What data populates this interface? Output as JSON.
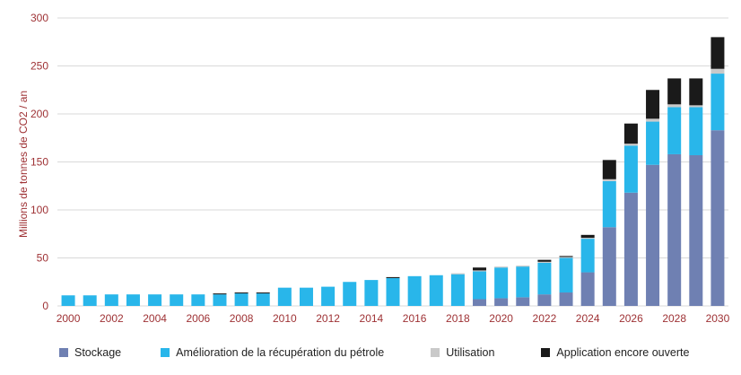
{
  "colors": {
    "axis_text": "#9e3134",
    "gridline": "#d9d9d9",
    "background": "#ffffff",
    "legend_text": "#1f1f1f"
  },
  "chart_data": {
    "type": "bar",
    "stacked": true,
    "title": "",
    "xlabel": "",
    "ylabel": "Millions de tonnes de CO2 / an",
    "ylim": [
      0,
      300
    ],
    "ytick_step": 50,
    "ytick_labels": [
      "0",
      "50",
      "100",
      "150",
      "200",
      "250",
      "300"
    ],
    "grid": "horizontal",
    "legend_position": "bottom",
    "categories": [
      2000,
      2001,
      2002,
      2003,
      2004,
      2005,
      2006,
      2007,
      2008,
      2009,
      2010,
      2011,
      2012,
      2013,
      2014,
      2015,
      2016,
      2017,
      2018,
      2019,
      2020,
      2021,
      2022,
      2023,
      2024,
      2025,
      2026,
      2027,
      2028,
      2029,
      2030
    ],
    "x_tick_labels": [
      "2000",
      "2002",
      "2004",
      "2006",
      "2008",
      "2010",
      "2012",
      "2014",
      "2016",
      "2018",
      "2020",
      "2022",
      "2024",
      "2026",
      "2028",
      "2030"
    ],
    "series": [
      {
        "name": "Stockage",
        "color": "#6f80b2",
        "values": [
          0,
          0,
          0,
          0,
          0,
          0,
          0,
          0,
          0,
          0,
          0,
          0,
          0,
          0,
          0,
          0,
          0,
          0,
          0,
          7,
          8,
          9,
          12,
          14,
          35,
          82,
          118,
          147,
          158,
          157,
          183
        ]
      },
      {
        "name": "Amélioration de la récupération du pétrole",
        "color": "#29b6ea",
        "values": [
          11,
          11,
          12,
          12,
          12,
          12,
          12,
          12,
          13,
          13,
          19,
          19,
          20,
          25,
          27,
          29,
          31,
          32,
          33,
          29,
          32,
          32,
          33,
          36,
          35,
          48,
          49,
          45,
          49,
          50,
          59
        ]
      },
      {
        "name": "Utilisation",
        "color": "#c9c9c9",
        "values": [
          0,
          0,
          0,
          0,
          0,
          0,
          0,
          0,
          0,
          0,
          0,
          0,
          0,
          0,
          0,
          0,
          0,
          0,
          1,
          1,
          1,
          1,
          1,
          1,
          1,
          2,
          2,
          3,
          3,
          2,
          5
        ]
      },
      {
        "name": "Application encore ouverte",
        "color": "#1a1a1a",
        "values": [
          0,
          0,
          0,
          0,
          0,
          0,
          0,
          1,
          1,
          1,
          0,
          0,
          0,
          0,
          0,
          1,
          0,
          0,
          0,
          3,
          0,
          0,
          2,
          1,
          3,
          20,
          21,
          30,
          27,
          28,
          33
        ]
      }
    ]
  }
}
